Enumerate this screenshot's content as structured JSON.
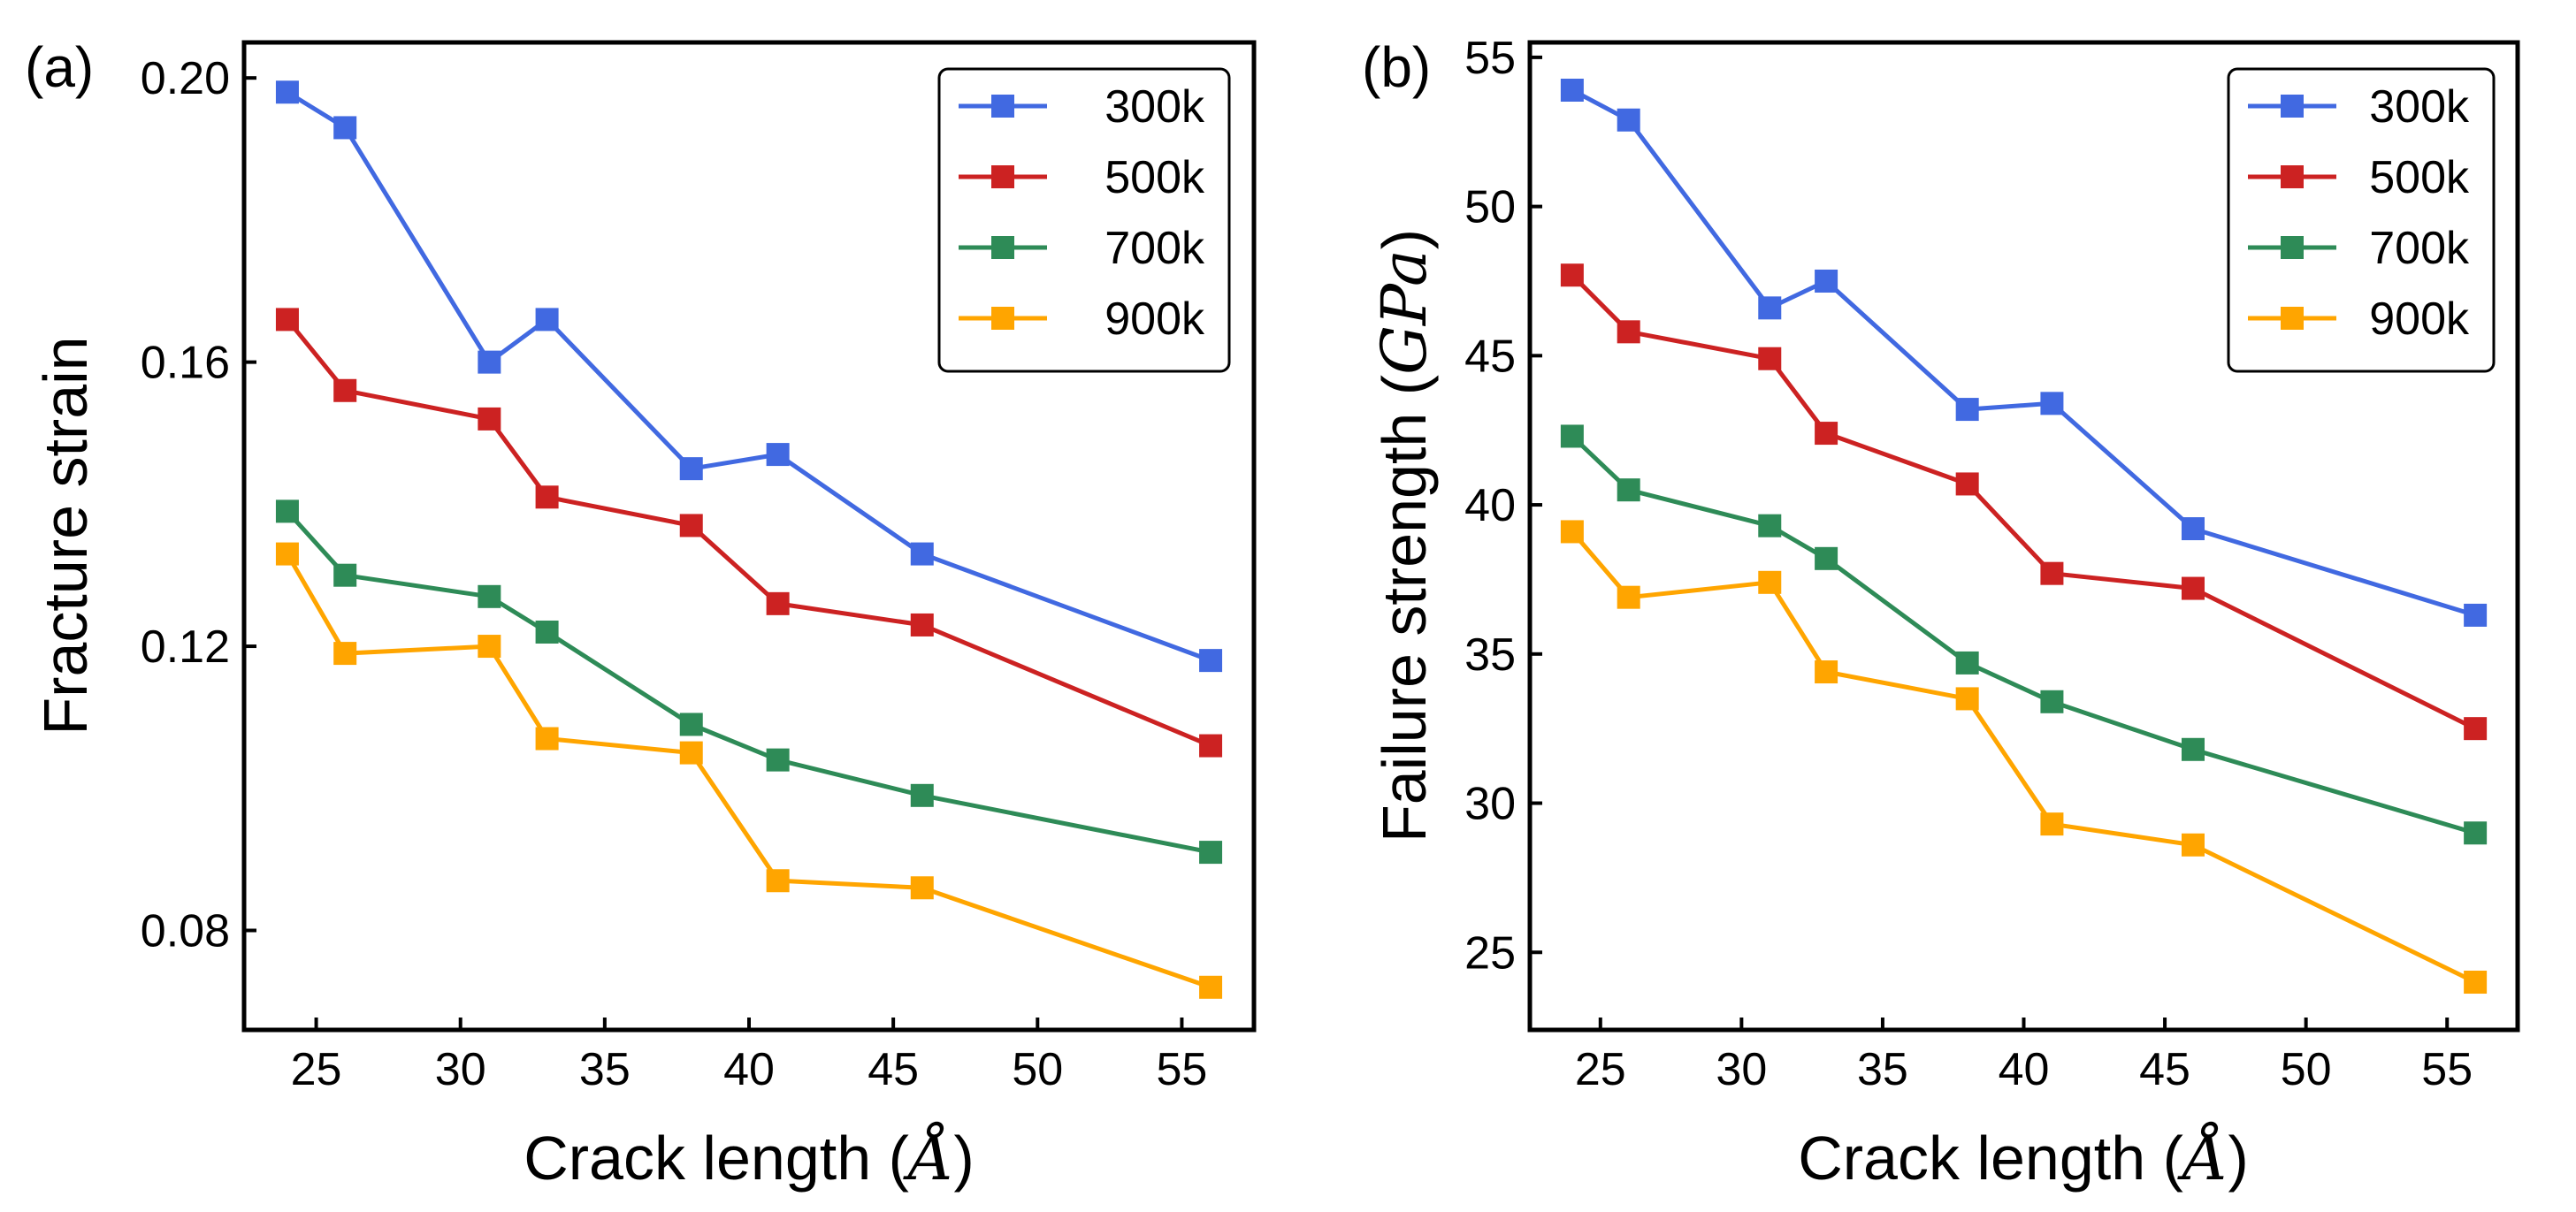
{
  "chart_data": [
    {
      "type": "line",
      "panel_label": "(a)",
      "xlabel_text": "Crack length",
      "xlabel_unit": "Å",
      "ylabel_text": "Fracture strain",
      "ylabel_unit": "",
      "x": [
        24,
        26,
        31,
        33,
        38,
        41,
        46,
        56
      ],
      "xlim": [
        22.5,
        57.5
      ],
      "ylim": [
        0.066,
        0.205
      ],
      "xticks": [
        25,
        30,
        35,
        40,
        45,
        50,
        55
      ],
      "yticks": [
        0.08,
        0.12,
        0.16,
        0.2
      ],
      "ytick_labels": [
        "0.08",
        "0.12",
        "0.16",
        "0.20"
      ],
      "legend_position": "top-right",
      "series": [
        {
          "name": "300k",
          "color": "#4169E1",
          "values": [
            0.198,
            0.193,
            0.16,
            0.166,
            0.145,
            0.147,
            0.133,
            0.118
          ]
        },
        {
          "name": "500k",
          "color": "#CC2222",
          "values": [
            0.166,
            0.156,
            0.152,
            0.141,
            0.137,
            0.126,
            0.123,
            0.106
          ]
        },
        {
          "name": "700k",
          "color": "#2E8B57",
          "values": [
            0.139,
            0.13,
            0.127,
            0.122,
            0.109,
            0.104,
            0.099,
            0.091
          ]
        },
        {
          "name": "900k",
          "color": "#FFA500",
          "values": [
            0.133,
            0.119,
            0.12,
            0.107,
            0.105,
            0.087,
            0.086,
            0.072
          ]
        }
      ]
    },
    {
      "type": "line",
      "panel_label": "(b)",
      "xlabel_text": "Crack length",
      "xlabel_unit": "Å",
      "ylabel_text": "Failure strength",
      "ylabel_unit": "GPa",
      "x": [
        24,
        26,
        31,
        33,
        38,
        41,
        46,
        56
      ],
      "xlim": [
        22.5,
        57.5
      ],
      "ylim": [
        22.4,
        55.5
      ],
      "xticks": [
        25,
        30,
        35,
        40,
        45,
        50,
        55
      ],
      "yticks": [
        25,
        30,
        35,
        40,
        45,
        50,
        55
      ],
      "ytick_labels": [
        "25",
        "30",
        "35",
        "40",
        "45",
        "50",
        "55"
      ],
      "legend_position": "top-right",
      "series": [
        {
          "name": "300k",
          "color": "#4169E1",
          "values": [
            53.9,
            52.9,
            46.6,
            47.5,
            43.2,
            43.4,
            39.2,
            36.3
          ]
        },
        {
          "name": "500k",
          "color": "#CC2222",
          "values": [
            47.7,
            45.8,
            44.9,
            42.4,
            40.7,
            37.7,
            37.2,
            32.5
          ]
        },
        {
          "name": "700k",
          "color": "#2E8B57",
          "values": [
            42.3,
            40.5,
            39.3,
            38.2,
            34.7,
            33.4,
            31.8,
            29.0
          ]
        },
        {
          "name": "900k",
          "color": "#FFA500",
          "values": [
            39.1,
            36.9,
            37.4,
            34.4,
            33.5,
            29.3,
            28.6,
            24.0
          ]
        }
      ]
    }
  ]
}
